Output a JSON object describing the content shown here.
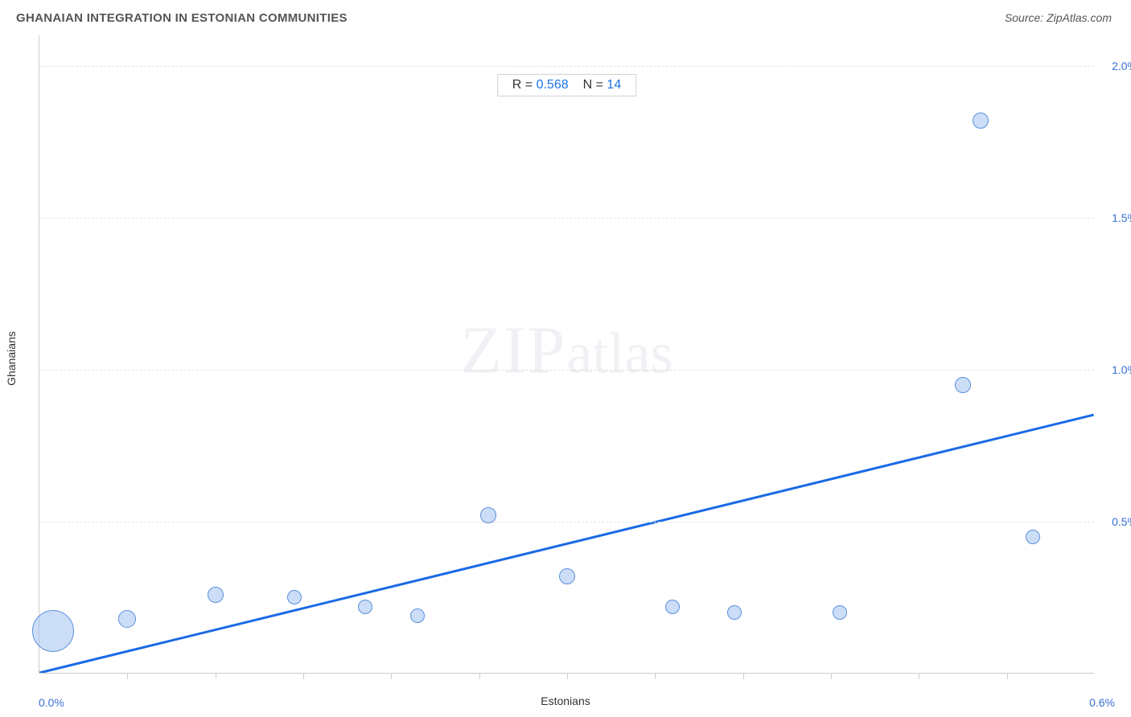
{
  "title": "GHANAIAN INTEGRATION IN ESTONIAN COMMUNITIES",
  "source": "Source: ZipAtlas.com",
  "watermark_big": "ZIP",
  "watermark_small": "atlas",
  "axis": {
    "x_title": "Estonians",
    "y_title": "Ghanaians",
    "x_start_label": "0.0%",
    "x_end_label": "0.6%"
  },
  "stats": {
    "r_label": "R = ",
    "r_value": "0.568",
    "n_label": "N = ",
    "n_value": "14"
  },
  "chart": {
    "type": "scatter",
    "xlim": [
      0.0,
      0.6
    ],
    "ylim": [
      0.0,
      2.1
    ],
    "y_gridlines": [
      0.5,
      1.0,
      1.5,
      2.0
    ],
    "y_tick_labels": [
      "0.5%",
      "1.0%",
      "1.5%",
      "2.0%"
    ],
    "x_minor_ticks": [
      0.05,
      0.1,
      0.15,
      0.2,
      0.25,
      0.3,
      0.35,
      0.4,
      0.45,
      0.5,
      0.55
    ],
    "background_color": "#ffffff",
    "grid_color": "#e0e0e0",
    "axis_color": "#cccccc",
    "label_color": "#3b6fd6",
    "title_color": "#555555",
    "bubble_fill": "rgba(153,189,240,0.5)",
    "bubble_stroke": "#5a8fde",
    "trend_color": "#1a6ae6",
    "trend_width": 3,
    "trend_line": {
      "x1": 0.0,
      "y1": 0.0,
      "x2": 0.6,
      "y2": 0.85
    },
    "points": [
      {
        "x": 0.008,
        "y": 0.14,
        "r": 52
      },
      {
        "x": 0.05,
        "y": 0.18,
        "r": 22
      },
      {
        "x": 0.1,
        "y": 0.26,
        "r": 20
      },
      {
        "x": 0.145,
        "y": 0.25,
        "r": 18
      },
      {
        "x": 0.185,
        "y": 0.22,
        "r": 18
      },
      {
        "x": 0.215,
        "y": 0.19,
        "r": 18
      },
      {
        "x": 0.255,
        "y": 0.52,
        "r": 20
      },
      {
        "x": 0.3,
        "y": 0.32,
        "r": 20
      },
      {
        "x": 0.36,
        "y": 0.22,
        "r": 18
      },
      {
        "x": 0.395,
        "y": 0.2,
        "r": 18
      },
      {
        "x": 0.455,
        "y": 0.2,
        "r": 18
      },
      {
        "x": 0.525,
        "y": 0.95,
        "r": 20
      },
      {
        "x": 0.535,
        "y": 1.82,
        "r": 20
      },
      {
        "x": 0.565,
        "y": 0.45,
        "r": 18
      }
    ]
  }
}
